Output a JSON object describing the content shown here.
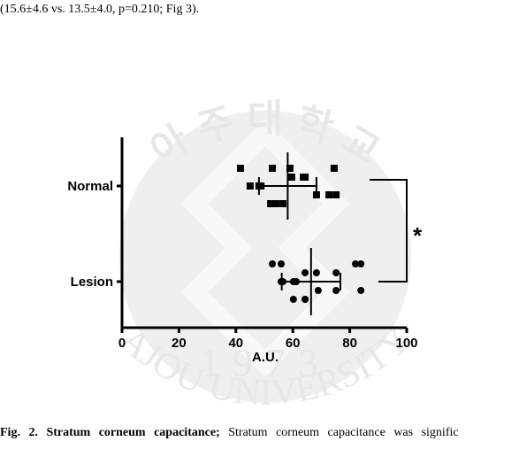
{
  "top_text": "(15.6±4.6 vs. 13.5±4.0, p=0.210; Fig 3).",
  "caption": {
    "label": "Fig. 2. Stratum corneum capacitance;",
    "text": "Stratum corneum capacitance was signific"
  },
  "watermark": {
    "top": "아  주  대  학  교",
    "bottom": "AJOU  UNIVERSITY",
    "year": "1973"
  },
  "chart_data": {
    "type": "dotplot",
    "xlabel": "A.U.",
    "annotation": "*",
    "categories": [
      "Normal",
      "Lesion"
    ],
    "xlim": [
      0,
      100
    ],
    "xticks": [
      0,
      20,
      40,
      60,
      80,
      100
    ],
    "groups": [
      {
        "marker": "square",
        "color": "#000000",
        "mean": 58.2,
        "sd": 10.1,
        "values": [
          59,
          45,
          52.2,
          63.7,
          72.7,
          41.6,
          48.8,
          56.5,
          64.3,
          68.3,
          74.5,
          48.1,
          54,
          59.6,
          75.2,
          52.8
        ]
      },
      {
        "marker": "circle",
        "color": "#000000",
        "mean": 66.4,
        "sd": 10.3,
        "values": [
          55.9,
          60.2,
          64.3,
          75.2,
          83.9,
          52.8,
          56.5,
          64.3,
          68.3,
          75.2,
          82,
          55.9,
          60.2,
          64.3,
          68.9,
          83.9,
          61.2
        ]
      }
    ]
  }
}
